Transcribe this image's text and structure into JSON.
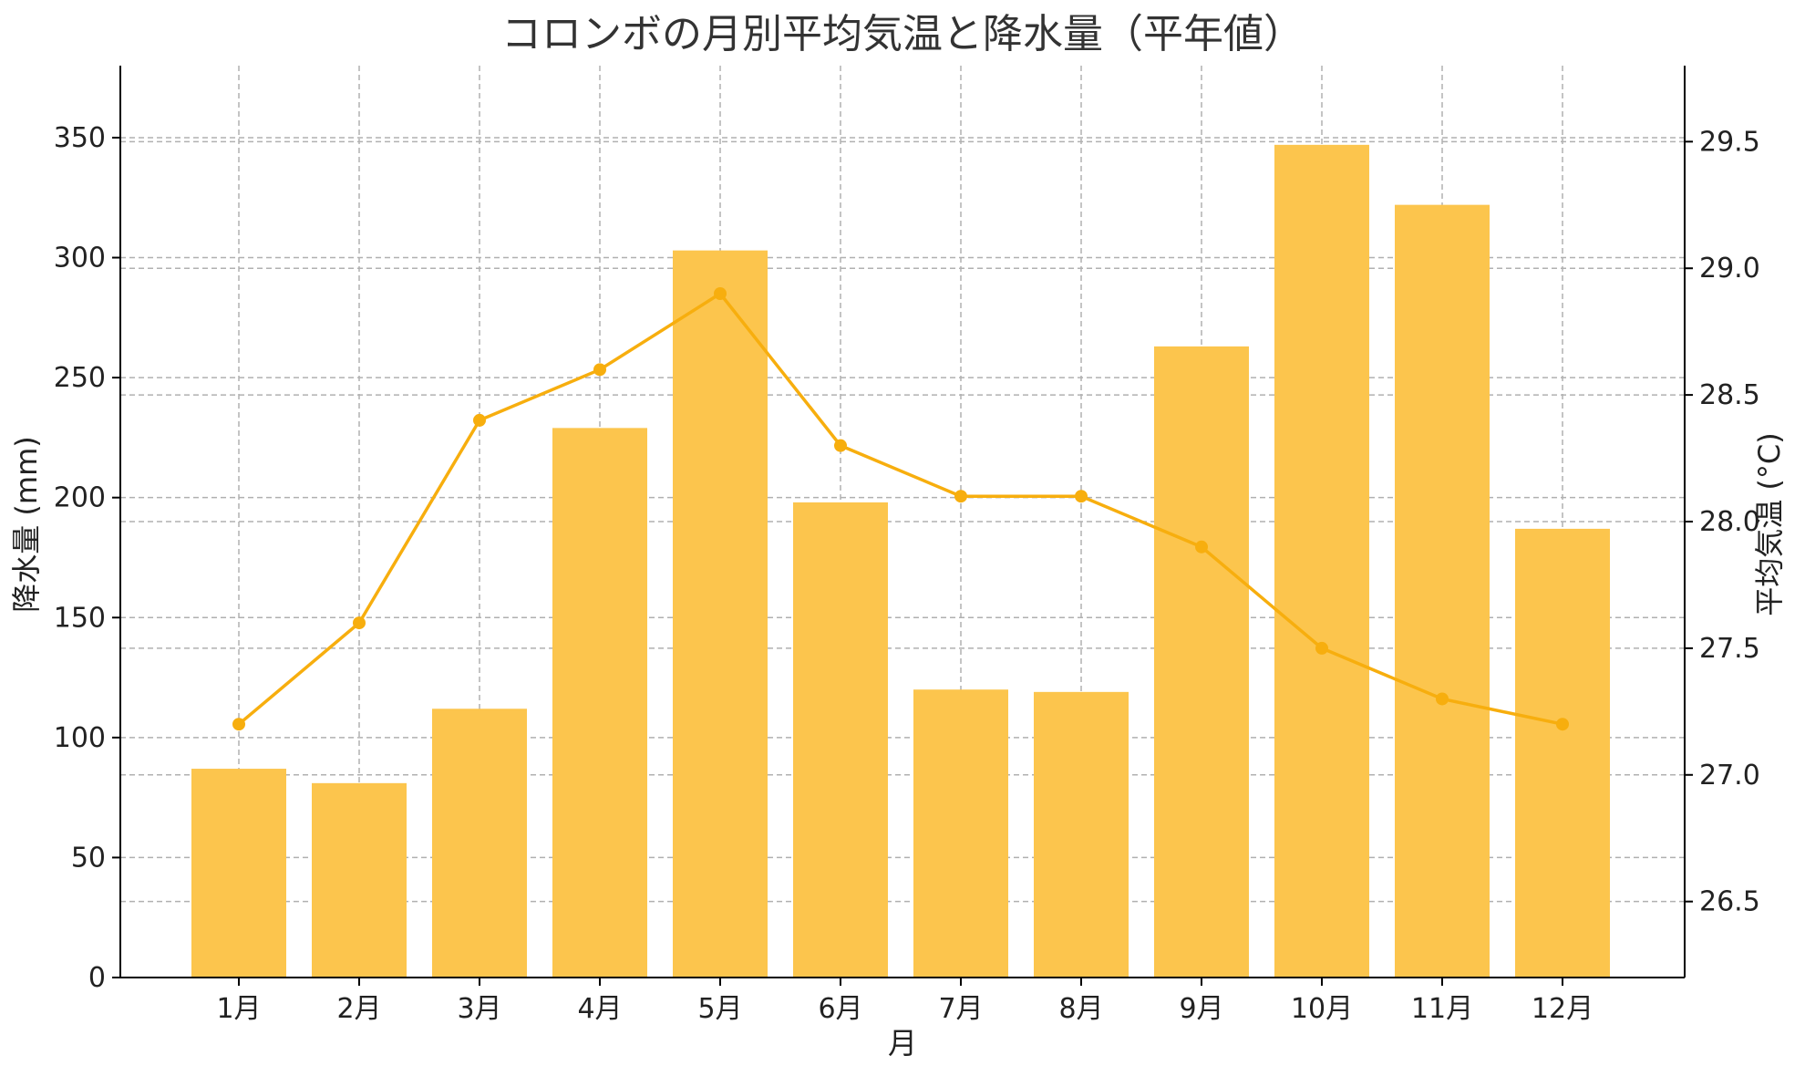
{
  "chart_data": {
    "type": "bar+line",
    "title": "コロンボの月別平均気温と降水量（平年値）",
    "xlabel": "月",
    "ylabel_left": "降水量 (mm)",
    "ylabel_right": "平均気温 (°C)",
    "categories": [
      "1月",
      "2月",
      "3月",
      "4月",
      "5月",
      "6月",
      "7月",
      "8月",
      "9月",
      "10月",
      "11月",
      "12月"
    ],
    "series": [
      {
        "type": "bar",
        "axis": "left",
        "color": "#fcc54d",
        "values": [
          87,
          81,
          112,
          229,
          303,
          198,
          120,
          119,
          263,
          347,
          322,
          187
        ]
      },
      {
        "type": "line",
        "axis": "right",
        "color": "#f7ae0e",
        "values": [
          27.2,
          27.6,
          28.4,
          28.6,
          28.9,
          28.3,
          28.1,
          28.1,
          27.9,
          27.5,
          27.3,
          27.2
        ]
      }
    ],
    "ylim_left": [
      0,
      380
    ],
    "yticks_left": [
      "0",
      "50",
      "100",
      "150",
      "200",
      "250",
      "300",
      "350"
    ],
    "ylim_right": [
      26.2,
      29.8
    ],
    "yticks_right": [
      "26.5",
      "27.0",
      "27.5",
      "28.0",
      "28.5",
      "29.0",
      "29.5"
    ],
    "grid": true
  }
}
